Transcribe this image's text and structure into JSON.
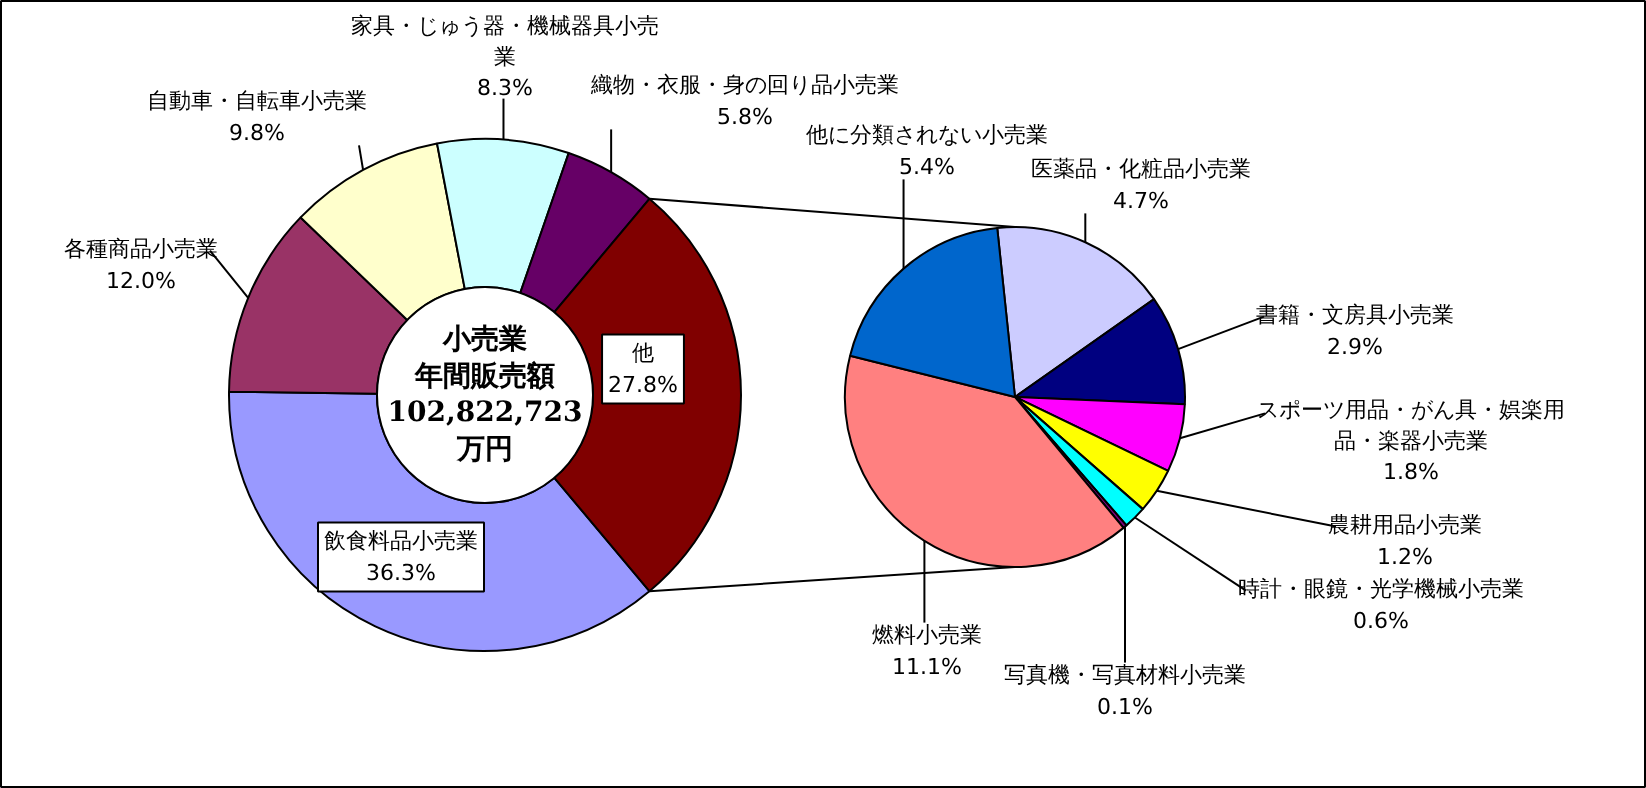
{
  "chart_data": [
    {
      "type": "donut",
      "title": "小売業年間販売額102,822,723万円",
      "categories": [
        "飲食料品小売業",
        "各種商品小売業",
        "自動車・自転車小売業",
        "家具・じゅう器・機械器具小売業",
        "織物・衣服・身の回り品小売業",
        "他"
      ],
      "values": [
        36.3,
        12.0,
        9.8,
        8.3,
        5.8,
        27.8
      ],
      "value_labels": [
        "36.3%",
        "12.0%",
        "9.8%",
        "8.3%",
        "5.8%",
        "27.8%"
      ],
      "colors": [
        "#9999ff",
        "#993366",
        "#ffffcc",
        "#ccffff",
        "#660066",
        "#800000"
      ]
    },
    {
      "type": "pie",
      "categories": [
        "医薬品・化粧品小売業",
        "書籍・文房具小売業",
        "スポーツ用品・がん具・娯楽用品・楽器小売業",
        "農耕用品小売業",
        "時計・眼鏡・光学機械小売業",
        "写真機・写真材料小売業",
        "燃料小売業",
        "他に分類されない小売業"
      ],
      "values": [
        4.7,
        2.9,
        1.8,
        1.2,
        0.6,
        0.1,
        11.1,
        5.4
      ],
      "value_labels": [
        "4.7%",
        "2.9%",
        "1.8%",
        "1.2%",
        "0.6%",
        "0.1%",
        "11.1%",
        "5.4%"
      ],
      "colors": [
        "#ccccff",
        "#000080",
        "#ff00ff",
        "#ffff00",
        "#00ffff",
        "#800080",
        "#ff8080",
        "#0066cc"
      ]
    }
  ]
}
